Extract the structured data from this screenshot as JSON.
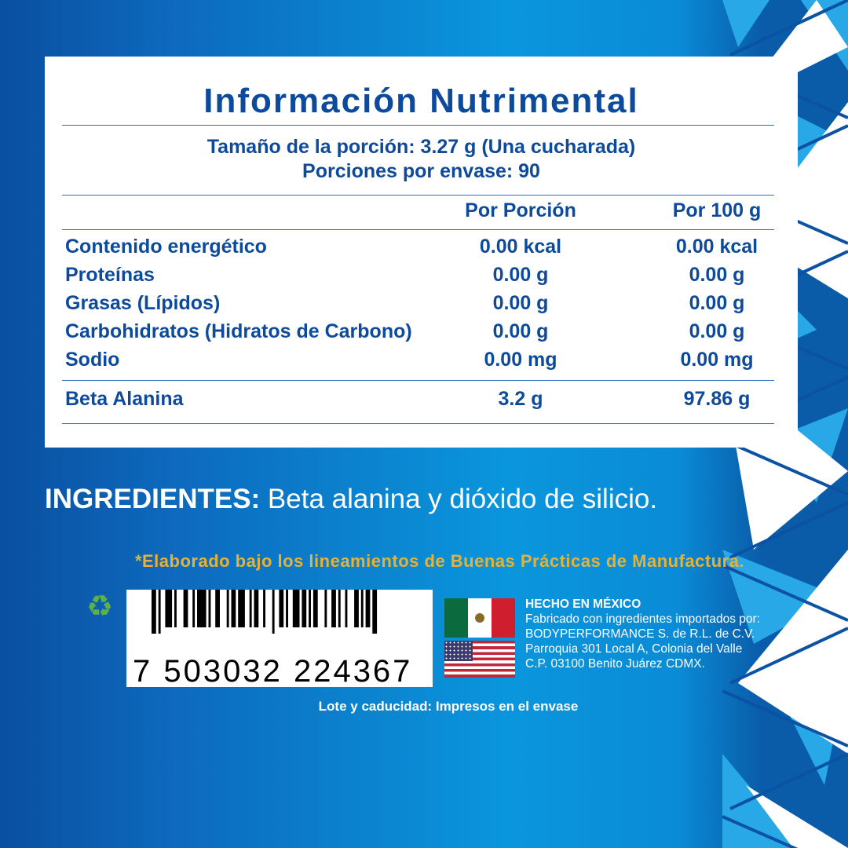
{
  "panel": {
    "title": "Información Nutrimental",
    "serving_size": "Tamaño de la porción: 3.27 g (Una cucharada)",
    "servings_per_container": "Porciones por envase: 90",
    "headers": [
      "",
      "Por Porción",
      "Por 100 g"
    ],
    "rows": [
      [
        "Contenido energético",
        "0.00 kcal",
        "0.00 kcal"
      ],
      [
        "Proteínas",
        "0.00 g",
        "0.00 g"
      ],
      [
        "Grasas (Lípidos)",
        "0.00 g",
        "0.00 g"
      ],
      [
        "Carbohidratos (Hidratos de Carbono)",
        "0.00 g",
        "0.00 g"
      ],
      [
        "Sodio",
        "0.00 mg",
        "0.00 mg"
      ],
      [
        "Beta Alanina",
        "3.2 g",
        "97.86 g"
      ]
    ]
  },
  "ingredients": {
    "label": "INGREDIENTES:",
    "text": " Beta alanina y dióxido de silicio."
  },
  "gmp_note": "*Elaborado bajo los lineamientos de Buenas Prácticas de Manufactura.",
  "recycle_icon": "recycle-icon",
  "barcode": {
    "number": "7 503032 224367"
  },
  "maker": {
    "made_in": "HECHO EN MÉXICO",
    "lines": [
      "Fabricado con ingredientes importados por:",
      "BODYPERFORMANCE S. de R.L. de C.V.",
      "Parroquia 301 Local A, Colonia del Valle",
      "C.P. 03100 Benito Juárez CDMX."
    ]
  },
  "lot_note": "Lote y caducidad: Impresos en el envase",
  "colors": {
    "text_blue": "#0d4a9c",
    "gold": "#e6b235",
    "recycle_green": "#5cb246"
  }
}
